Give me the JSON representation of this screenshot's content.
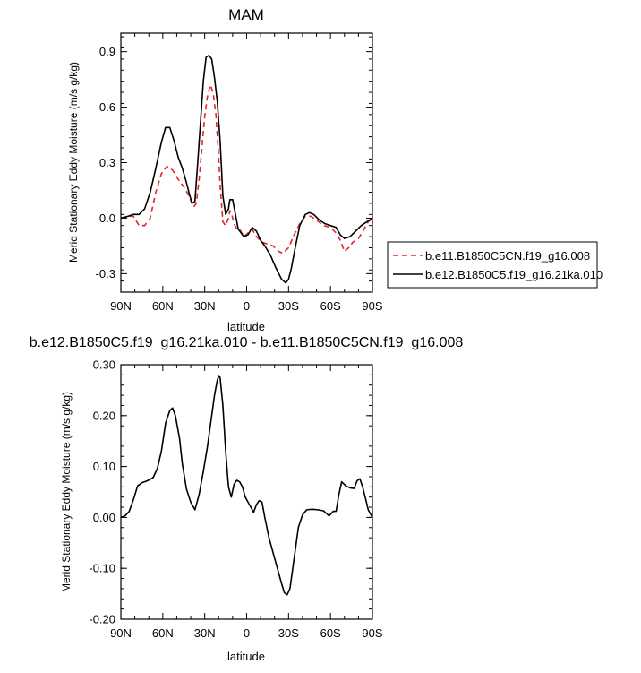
{
  "chart_data": [
    {
      "type": "line",
      "title": "MAM",
      "xlabel": "latitude",
      "ylabel": "Merid Stationary Eddy Moisture (m/s g/kg)",
      "xlim": [
        90,
        -90
      ],
      "ylim": [
        -0.4,
        1.0
      ],
      "x_ticks": [
        90,
        60,
        30,
        0,
        -30,
        -60,
        -90
      ],
      "x_tick_labels": [
        "90N",
        "60N",
        "30N",
        "0",
        "30S",
        "60S",
        "90S"
      ],
      "y_ticks": [
        -0.3,
        0,
        0.3,
        0.6,
        0.9
      ],
      "y_tick_labels": [
        "-0.3",
        "0.0",
        "0.3",
        "0.6",
        "0.9"
      ],
      "legend_position": "right",
      "series": [
        {
          "name": "b.e11.B1850C5CN.f19_g16.008",
          "color": "#e8222a",
          "dash": "dashed",
          "points": [
            [
              90,
              0.0
            ],
            [
              85,
              0.01
            ],
            [
              81,
              0.01
            ],
            [
              77,
              -0.04
            ],
            [
              73,
              -0.04
            ],
            [
              69,
              0.0
            ],
            [
              65,
              0.14
            ],
            [
              61,
              0.24
            ],
            [
              57,
              0.28
            ],
            [
              53,
              0.26
            ],
            [
              49,
              0.21
            ],
            [
              45,
              0.17
            ],
            [
              42,
              0.13
            ],
            [
              38,
              0.06
            ],
            [
              36,
              0.08
            ],
            [
              34,
              0.21
            ],
            [
              32,
              0.38
            ],
            [
              30,
              0.55
            ],
            [
              28,
              0.66
            ],
            [
              26,
              0.72
            ],
            [
              24,
              0.68
            ],
            [
              22,
              0.56
            ],
            [
              20,
              0.33
            ],
            [
              19,
              0.18
            ],
            [
              17,
              -0.02
            ],
            [
              15,
              -0.04
            ],
            [
              13,
              0.0
            ],
            [
              12,
              0.04
            ],
            [
              11,
              0.03
            ],
            [
              9,
              -0.03
            ],
            [
              7,
              -0.06
            ],
            [
              5,
              -0.06
            ],
            [
              2,
              -0.1
            ],
            [
              -1,
              -0.08
            ],
            [
              -4,
              -0.06
            ],
            [
              -7,
              -0.1
            ],
            [
              -11,
              -0.13
            ],
            [
              -15,
              -0.14
            ],
            [
              -19,
              -0.15
            ],
            [
              -23,
              -0.18
            ],
            [
              -26,
              -0.19
            ],
            [
              -30,
              -0.16
            ],
            [
              -34,
              -0.09
            ],
            [
              -38,
              -0.03
            ],
            [
              -42,
              0.01
            ],
            [
              -46,
              0.01
            ],
            [
              -50,
              -0.01
            ],
            [
              -55,
              -0.04
            ],
            [
              -60,
              -0.05
            ],
            [
              -64,
              -0.08
            ],
            [
              -67,
              -0.12
            ],
            [
              -70,
              -0.18
            ],
            [
              -73,
              -0.16
            ],
            [
              -76,
              -0.13
            ],
            [
              -80,
              -0.11
            ],
            [
              -84,
              -0.06
            ],
            [
              -87,
              -0.02
            ],
            [
              -90,
              0.0
            ]
          ]
        },
        {
          "name": "b.e12.B1850C5.f19_g16.21ka.010",
          "color": "#000000",
          "dash": "solid",
          "points": [
            [
              90,
              0.0
            ],
            [
              85,
              0.01
            ],
            [
              81,
              0.02
            ],
            [
              77,
              0.02
            ],
            [
              73,
              0.05
            ],
            [
              69,
              0.14
            ],
            [
              65,
              0.27
            ],
            [
              61,
              0.41
            ],
            [
              58,
              0.49
            ],
            [
              55,
              0.49
            ],
            [
              52,
              0.42
            ],
            [
              49,
              0.33
            ],
            [
              46,
              0.27
            ],
            [
              43,
              0.19
            ],
            [
              41,
              0.13
            ],
            [
              39,
              0.08
            ],
            [
              37,
              0.09
            ],
            [
              35,
              0.3
            ],
            [
              33,
              0.52
            ],
            [
              31,
              0.74
            ],
            [
              29,
              0.87
            ],
            [
              27,
              0.88
            ],
            [
              25,
              0.86
            ],
            [
              23,
              0.76
            ],
            [
              21,
              0.63
            ],
            [
              19,
              0.42
            ],
            [
              17,
              0.12
            ],
            [
              15,
              0.02
            ],
            [
              13,
              0.05
            ],
            [
              12,
              0.1
            ],
            [
              10,
              0.1
            ],
            [
              8,
              0.02
            ],
            [
              6,
              -0.06
            ],
            [
              4,
              -0.08
            ],
            [
              2,
              -0.1
            ],
            [
              -1,
              -0.09
            ],
            [
              -4,
              -0.05
            ],
            [
              -7,
              -0.07
            ],
            [
              -10,
              -0.12
            ],
            [
              -13,
              -0.15
            ],
            [
              -17,
              -0.2
            ],
            [
              -21,
              -0.27
            ],
            [
              -25,
              -0.33
            ],
            [
              -28,
              -0.35
            ],
            [
              -30,
              -0.33
            ],
            [
              -32,
              -0.27
            ],
            [
              -35,
              -0.15
            ],
            [
              -38,
              -0.04
            ],
            [
              -42,
              0.02
            ],
            [
              -45,
              0.03
            ],
            [
              -48,
              0.02
            ],
            [
              -52,
              -0.01
            ],
            [
              -56,
              -0.03
            ],
            [
              -60,
              -0.04
            ],
            [
              -64,
              -0.05
            ],
            [
              -67,
              -0.09
            ],
            [
              -70,
              -0.11
            ],
            [
              -74,
              -0.1
            ],
            [
              -78,
              -0.07
            ],
            [
              -82,
              -0.04
            ],
            [
              -86,
              -0.02
            ],
            [
              -90,
              0.0
            ]
          ]
        }
      ]
    },
    {
      "type": "line",
      "title": "b.e12.B1850C5.f19_g16.21ka.010 - b.e11.B1850C5CN.f19_g16.008",
      "xlabel": "latitude",
      "ylabel": "Merid Stationary Eddy Moisture (m/s g/kg)",
      "xlim": [
        90,
        -90
      ],
      "ylim": [
        -0.2,
        0.3
      ],
      "x_ticks": [
        90,
        60,
        30,
        0,
        -30,
        -60,
        -90
      ],
      "x_tick_labels": [
        "90N",
        "60N",
        "30N",
        "0",
        "30S",
        "60S",
        "90S"
      ],
      "y_ticks": [
        -0.2,
        -0.1,
        0,
        0.1,
        0.2,
        0.3
      ],
      "y_tick_labels": [
        "-0.20",
        "-0.10",
        "0.00",
        "0.10",
        "0.20",
        "0.30"
      ],
      "series": [
        {
          "color": "#000000",
          "dash": "solid",
          "points": [
            [
              90,
              0.0
            ],
            [
              87,
              0.003
            ],
            [
              84,
              0.012
            ],
            [
              81,
              0.035
            ],
            [
              78,
              0.062
            ],
            [
              75,
              0.068
            ],
            [
              71,
              0.072
            ],
            [
              67,
              0.078
            ],
            [
              64,
              0.095
            ],
            [
              61,
              0.13
            ],
            [
              58,
              0.185
            ],
            [
              55,
              0.21
            ],
            [
              53,
              0.215
            ],
            [
              51,
              0.2
            ],
            [
              48,
              0.155
            ],
            [
              46,
              0.105
            ],
            [
              43,
              0.055
            ],
            [
              40,
              0.03
            ],
            [
              37,
              0.015
            ],
            [
              34,
              0.045
            ],
            [
              31,
              0.09
            ],
            [
              28,
              0.14
            ],
            [
              25,
              0.2
            ],
            [
              23,
              0.24
            ],
            [
              21,
              0.27
            ],
            [
              20,
              0.277
            ],
            [
              19,
              0.275
            ],
            [
              17,
              0.22
            ],
            [
              15,
              0.13
            ],
            [
              13,
              0.06
            ],
            [
              11,
              0.04
            ],
            [
              9,
              0.065
            ],
            [
              7,
              0.073
            ],
            [
              5,
              0.07
            ],
            [
              3,
              0.06
            ],
            [
              1,
              0.04
            ],
            [
              -1,
              0.03
            ],
            [
              -3,
              0.02
            ],
            [
              -5,
              0.01
            ],
            [
              -7,
              0.025
            ],
            [
              -9,
              0.033
            ],
            [
              -11,
              0.03
            ],
            [
              -13,
              0.0
            ],
            [
              -16,
              -0.04
            ],
            [
              -19,
              -0.07
            ],
            [
              -22,
              -0.1
            ],
            [
              -25,
              -0.13
            ],
            [
              -27,
              -0.148
            ],
            [
              -29,
              -0.152
            ],
            [
              -31,
              -0.14
            ],
            [
              -34,
              -0.08
            ],
            [
              -37,
              -0.02
            ],
            [
              -40,
              0.005
            ],
            [
              -43,
              0.015
            ],
            [
              -47,
              0.016
            ],
            [
              -51,
              0.015
            ],
            [
              -55,
              0.013
            ],
            [
              -59,
              0.003
            ],
            [
              -62,
              0.012
            ],
            [
              -64,
              0.012
            ],
            [
              -66,
              0.045
            ],
            [
              -68,
              0.07
            ],
            [
              -71,
              0.062
            ],
            [
              -74,
              0.058
            ],
            [
              -77,
              0.057
            ],
            [
              -79,
              0.072
            ],
            [
              -81,
              0.076
            ],
            [
              -83,
              0.06
            ],
            [
              -85,
              0.038
            ],
            [
              -87,
              0.015
            ],
            [
              -90,
              0.0
            ]
          ]
        }
      ]
    }
  ]
}
